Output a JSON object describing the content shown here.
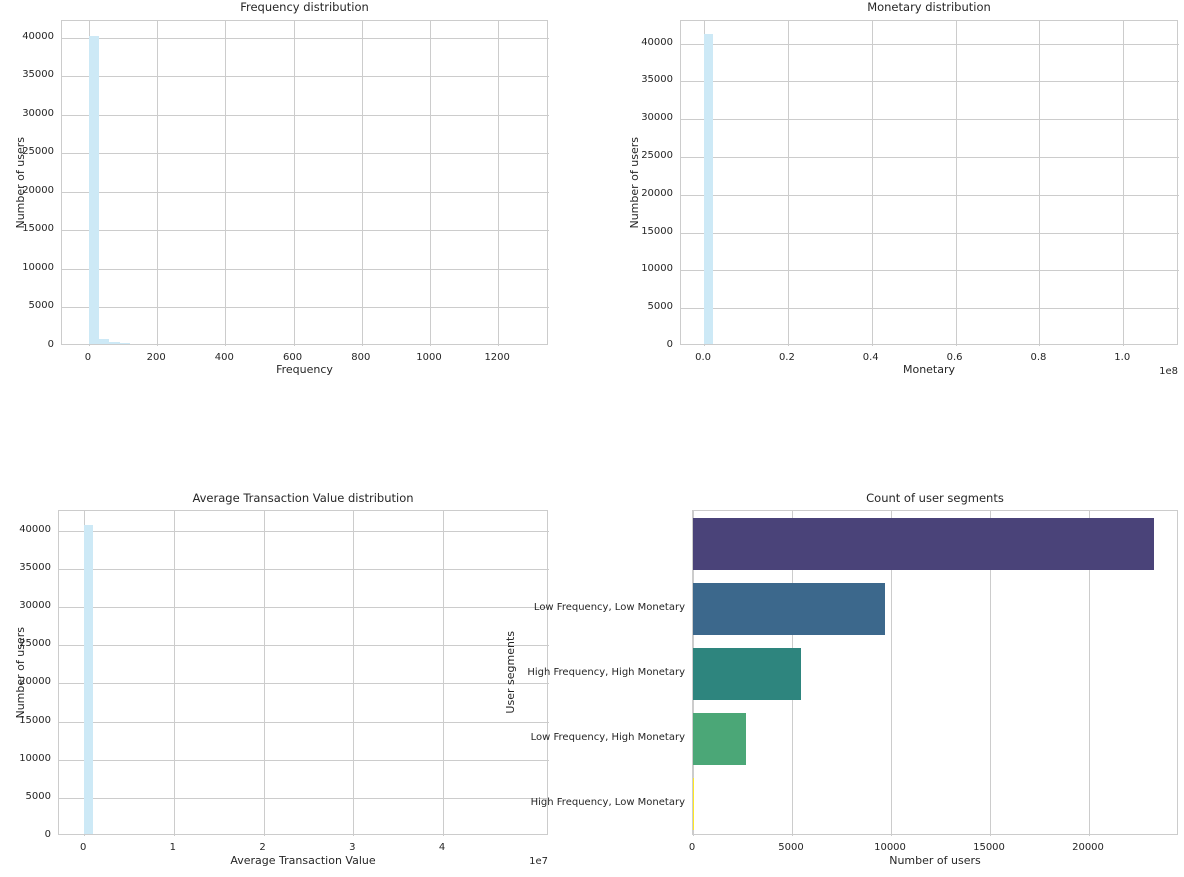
{
  "figure": {
    "background": "#ffffff",
    "text_color": "#262626",
    "grid_color": "#cccccc",
    "spine_color": "#cccccc",
    "histogram_fill": "#cde9f6"
  },
  "chart_data": [
    {
      "type": "bar",
      "subtype": "histogram",
      "title": "Frequency distribution",
      "xlabel": "Frequency",
      "ylabel": "Number of users",
      "grid": true,
      "legend": "none",
      "xlim": [
        -79,
        1349
      ],
      "ylim": [
        0,
        42200
      ],
      "xticks": [
        0,
        200,
        400,
        600,
        800,
        1000,
        1200
      ],
      "yticks": [
        0,
        5000,
        10000,
        15000,
        20000,
        25000,
        30000,
        35000,
        40000
      ],
      "bins": [
        {
          "from": 0,
          "to": 30,
          "count": 40000
        },
        {
          "from": 30,
          "to": 60,
          "count": 600
        },
        {
          "from": 60,
          "to": 90,
          "count": 250
        },
        {
          "from": 90,
          "to": 120,
          "count": 80
        }
      ]
    },
    {
      "type": "bar",
      "subtype": "histogram",
      "title": "Monetary distribution",
      "xlabel": "Monetary",
      "ylabel": "Number of users",
      "grid": true,
      "legend": "none",
      "offset_label": "1e8",
      "xlim": [
        -5500000,
        113300000
      ],
      "ylim": [
        0,
        43000
      ],
      "xticks": [
        0,
        20000000,
        40000000,
        60000000,
        80000000,
        100000000
      ],
      "xtick_labels": [
        "0.0",
        "0.2",
        "0.4",
        "0.6",
        "0.8",
        "1.0"
      ],
      "yticks": [
        0,
        5000,
        10000,
        15000,
        20000,
        25000,
        30000,
        35000,
        40000
      ],
      "bins": [
        {
          "from": 0,
          "to": 2200000,
          "count": 41000
        }
      ]
    },
    {
      "type": "bar",
      "subtype": "histogram",
      "title": "Average Transaction Value distribution",
      "xlabel": "Average Transaction Value",
      "ylabel": "Number of users",
      "grid": true,
      "legend": "none",
      "offset_label": "1e7",
      "xlim": [
        -2800000,
        51800000
      ],
      "ylim": [
        0,
        42600
      ],
      "xticks": [
        0,
        10000000,
        20000000,
        30000000,
        40000000
      ],
      "xtick_labels": [
        "0",
        "1",
        "2",
        "3",
        "4"
      ],
      "yticks": [
        0,
        5000,
        10000,
        15000,
        20000,
        25000,
        30000,
        35000,
        40000
      ],
      "bins": [
        {
          "from": 0,
          "to": 1000000,
          "count": 40500
        }
      ]
    },
    {
      "type": "bar",
      "subtype": "horizontal_bar",
      "title": "Count of user segments",
      "xlabel": "Number of users",
      "ylabel": "User segments",
      "grid": true,
      "legend": "none",
      "xlim": [
        0,
        24545
      ],
      "xticks": [
        0,
        5000,
        10000,
        15000,
        20000
      ],
      "categories": [
        "",
        "Low Frequency, Low Monetary",
        "High Frequency, High Monetary",
        "Low Frequency, High Monetary",
        "High Frequency, Low Monetary"
      ],
      "values": [
        23300,
        9700,
        5450,
        2680,
        20
      ],
      "colors": [
        "#4a4379",
        "#3c688c",
        "#2e857e",
        "#4ba777",
        "#fde725"
      ]
    }
  ]
}
